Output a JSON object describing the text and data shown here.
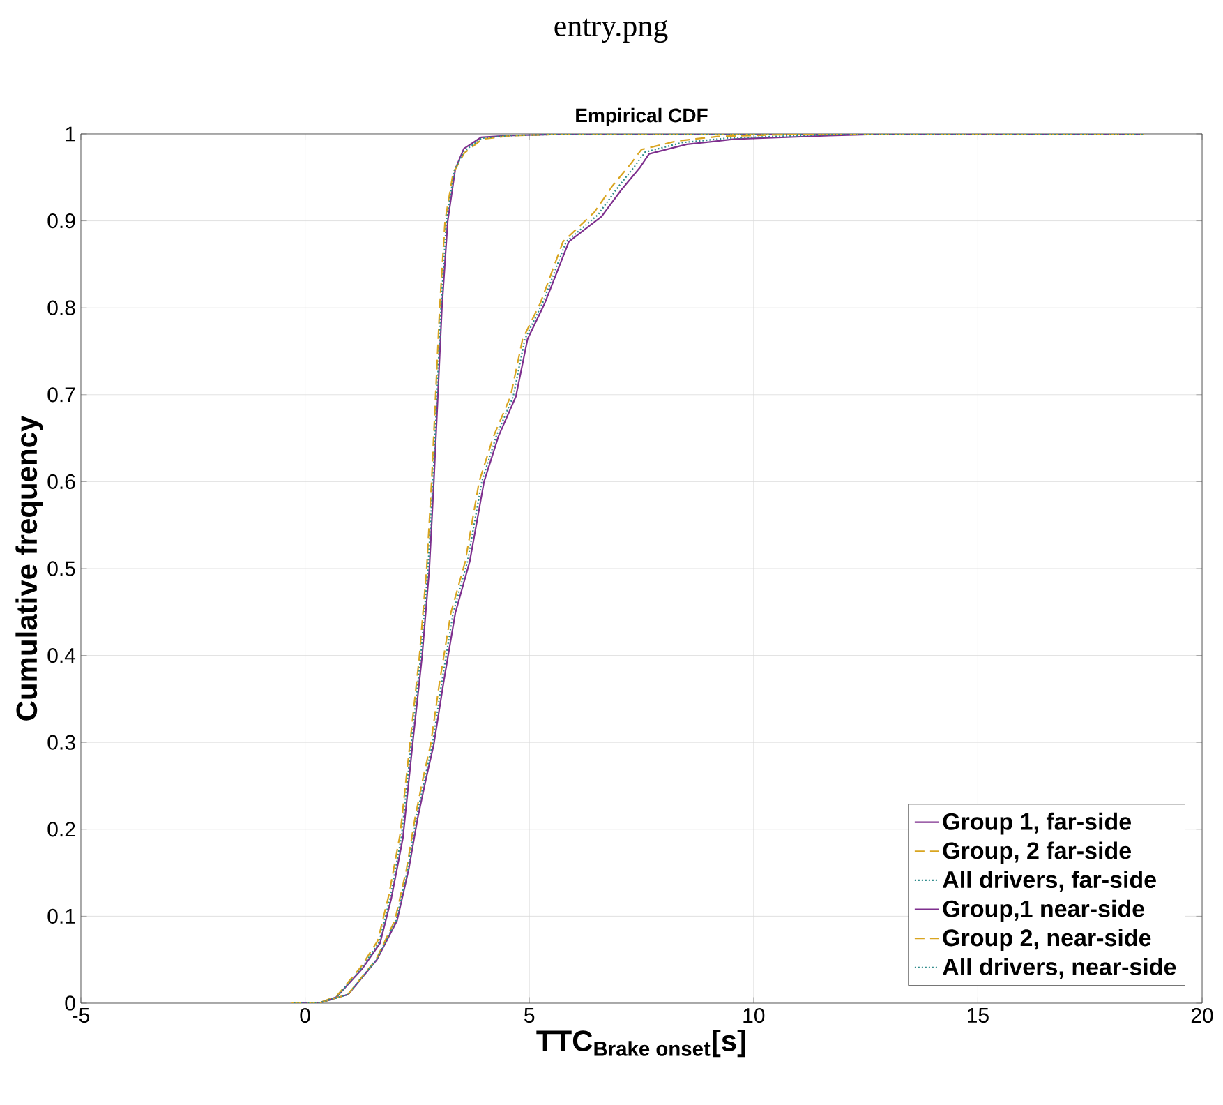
{
  "chart_data": {
    "type": "line",
    "title": "Empirical CDF",
    "xlabel": "\\text{\\bfseries TTC}_{\\text{\\bfseries Brake onset}}\\text{\\bfseries [s]}",
    "ylabel": "Cumulative frequency",
    "annotations": [
      "entry.png"
    ],
    "xlim": [
      -5,
      20
    ],
    "ylim": [
      0,
      1
    ],
    "xticks": [
      -5,
      0,
      5,
      10,
      15,
      20
    ],
    "yticks": [
      0,
      0.1,
      0.2,
      0.3,
      0.4,
      0.5,
      0.6,
      0.7,
      0.8,
      0.9,
      1
    ],
    "grid": true,
    "legend": "bottom right",
    "series": [
      {
        "name": "Group 1, far-side",
        "color": "#7e2f8e",
        "line_style": "solid",
        "x": [
          -0.2,
          0.3,
          0.7,
          1.28,
          1.67,
          1.92,
          2.18,
          2.4,
          2.61,
          2.77,
          2.87,
          2.96,
          3.05,
          3.18,
          3.35,
          3.54,
          3.92,
          4.5,
          6,
          18.7
        ],
        "values": [
          0,
          0,
          0.007,
          0.04,
          0.069,
          0.12,
          0.19,
          0.3,
          0.4,
          0.5,
          0.6,
          0.7,
          0.8,
          0.9,
          0.96,
          0.983,
          0.996,
          0.998,
          1,
          1
        ]
      },
      {
        "name": "Group, 2 far-side",
        "color": "#d9a520",
        "line_style": "dashed",
        "x": [
          -0.3,
          0.3,
          0.7,
          1.25,
          1.62,
          1.87,
          2.12,
          2.34,
          2.55,
          2.71,
          2.82,
          2.91,
          3.0,
          3.12,
          3.3,
          3.55,
          3.95,
          4.6,
          6,
          12
        ],
        "values": [
          0,
          0,
          0.008,
          0.042,
          0.072,
          0.125,
          0.195,
          0.3,
          0.4,
          0.5,
          0.6,
          0.7,
          0.8,
          0.9,
          0.955,
          0.978,
          0.994,
          0.998,
          1,
          1
        ]
      },
      {
        "name": "All drivers, far-side",
        "color": "#2e8b8b",
        "line_style": "dotted",
        "x": [
          -0.25,
          0.3,
          0.7,
          1.27,
          1.65,
          1.9,
          2.15,
          2.37,
          2.58,
          2.74,
          2.85,
          2.94,
          3.03,
          3.15,
          3.33,
          3.54,
          3.93,
          4.5,
          6,
          18.7
        ],
        "values": [
          0,
          0,
          0.007,
          0.041,
          0.07,
          0.122,
          0.192,
          0.3,
          0.4,
          0.5,
          0.6,
          0.7,
          0.8,
          0.9,
          0.958,
          0.98,
          0.995,
          0.998,
          1,
          1
        ]
      },
      {
        "name": "Group,1 near-side",
        "color": "#7e2f8e",
        "line_style": "solid",
        "x": [
          0.3,
          0.96,
          1.6,
          2.05,
          2.31,
          2.51,
          2.7,
          2.87,
          3.09,
          3.35,
          3.67,
          3.99,
          4.31,
          4.7,
          4.96,
          5.35,
          5.88,
          6.61,
          7.04,
          7.46,
          7.67,
          8.51,
          9.57,
          11.68,
          13,
          18.7
        ],
        "values": [
          0,
          0.01,
          0.05,
          0.095,
          0.154,
          0.213,
          0.259,
          0.298,
          0.37,
          0.449,
          0.508,
          0.6,
          0.652,
          0.698,
          0.764,
          0.806,
          0.876,
          0.905,
          0.935,
          0.961,
          0.977,
          0.988,
          0.994,
          0.998,
          1,
          1
        ]
      },
      {
        "name": "Group 2, near-side",
        "color": "#d9a520",
        "line_style": "dashed",
        "x": [
          0.3,
          0.95,
          1.58,
          2.0,
          2.26,
          2.45,
          2.63,
          2.8,
          3.0,
          3.25,
          3.57,
          3.88,
          4.2,
          4.58,
          4.85,
          5.25,
          5.75,
          6.45,
          6.85,
          7.25,
          7.5,
          8.3,
          9.2,
          10.5,
          12,
          18.7
        ],
        "values": [
          0,
          0.01,
          0.05,
          0.095,
          0.154,
          0.213,
          0.259,
          0.298,
          0.37,
          0.449,
          0.508,
          0.6,
          0.652,
          0.698,
          0.764,
          0.806,
          0.876,
          0.91,
          0.94,
          0.965,
          0.982,
          0.992,
          0.997,
          0.999,
          1,
          1
        ]
      },
      {
        "name": "All drivers, near-side",
        "color": "#2e8b8b",
        "line_style": "dotted",
        "x": [
          0.3,
          0.96,
          1.59,
          2.03,
          2.29,
          2.48,
          2.67,
          2.84,
          3.05,
          3.3,
          3.62,
          3.94,
          4.26,
          4.64,
          4.9,
          5.3,
          5.82,
          6.53,
          6.95,
          7.35,
          7.58,
          8.4,
          9.4,
          11,
          12.5,
          18.7
        ],
        "values": [
          0,
          0.01,
          0.05,
          0.095,
          0.154,
          0.213,
          0.259,
          0.298,
          0.37,
          0.449,
          0.508,
          0.6,
          0.652,
          0.698,
          0.764,
          0.806,
          0.876,
          0.907,
          0.937,
          0.963,
          0.979,
          0.99,
          0.995,
          0.998,
          1,
          1
        ]
      }
    ]
  }
}
